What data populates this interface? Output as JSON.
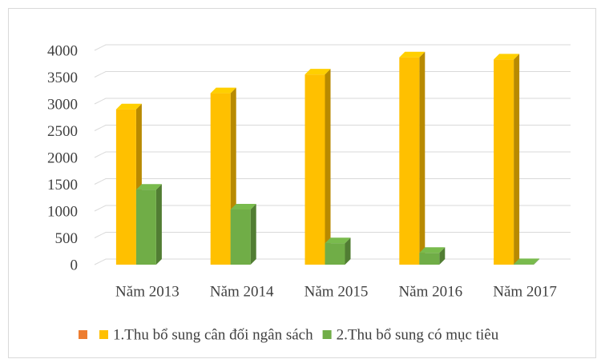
{
  "chart_data": {
    "type": "bar3d",
    "categories": [
      "Năm 2013",
      "Năm 2014",
      "Năm 2015",
      "Năm 2016",
      "Năm 2017"
    ],
    "series": [
      {
        "name": "1.Thu bổ sung cân đối ngân sách",
        "color": "#FFC000",
        "values": [
          2900,
          3200,
          3550,
          3870,
          3830
        ]
      },
      {
        "name": "2.Thu bổ sung có mục tiêu",
        "color": "#70AD47",
        "values": [
          1400,
          1030,
          400,
          220,
          10
        ]
      }
    ],
    "ylim": [
      0,
      4000
    ],
    "yticks": [
      0,
      500,
      1000,
      1500,
      2000,
      2500,
      3000,
      3500,
      4000
    ],
    "grid": true,
    "legend": "bottom"
  }
}
